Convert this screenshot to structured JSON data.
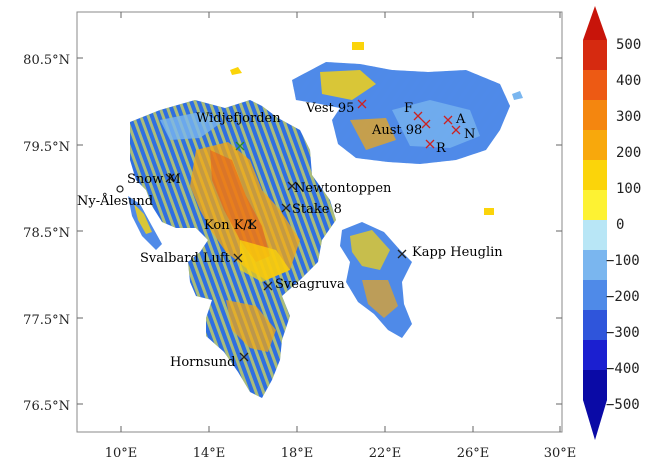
{
  "map": {
    "lon_ticks": [
      "10°E",
      "14°E",
      "18°E",
      "22°E",
      "26°E",
      "30°E"
    ],
    "lat_ticks": [
      "80.5°N",
      "79.5°N",
      "78.5°N",
      "77.5°N",
      "76.5°N"
    ],
    "lon_range": [
      8,
      30.4
    ],
    "lat_range": [
      76.2,
      81.1
    ]
  },
  "colorbar": {
    "labels": [
      "500",
      "400",
      "300",
      "200",
      "100",
      "0",
      "−100",
      "−200",
      "−300",
      "−400",
      "−500"
    ],
    "colors": [
      "#d62a10",
      "#ed5a14",
      "#f4860f",
      "#f8a80c",
      "#fbd40a",
      "#fdf233",
      "#b8e6f6",
      "#7ab6ef",
      "#4f8ae8",
      "#2f55db",
      "#1b1fd0",
      "#0a0aa6"
    ],
    "top_arrow_color": "#c8140a",
    "bottom_arrow_color": "#0a0aa6"
  },
  "stations": [
    {
      "name": "Vest 95",
      "marker": "x",
      "color": "#cc2222"
    },
    {
      "name": "F",
      "marker": "x",
      "color": "#cc2222"
    },
    {
      "name": "A",
      "marker": "x",
      "color": "#cc2222"
    },
    {
      "name": "Aust 98",
      "marker": "x",
      "color": "#cc2222"
    },
    {
      "name": "N",
      "marker": "x",
      "color": "#cc2222"
    },
    {
      "name": "R",
      "marker": "x",
      "color": "#cc2222"
    },
    {
      "name": "Widjefjorden",
      "marker": "x",
      "color": "#2a8a2a"
    },
    {
      "name": "Snow M",
      "marker": "x",
      "color": "#222222"
    },
    {
      "name": "Ny-Ålesund",
      "marker": "o",
      "color": "#222222"
    },
    {
      "name": "Newtontoppen",
      "marker": "x",
      "color": "#222222"
    },
    {
      "name": "Stake 8",
      "marker": "x",
      "color": "#222222"
    },
    {
      "name": "Kon K/L",
      "marker": "x",
      "color": "#222222"
    },
    {
      "name": "Svalbard Luft",
      "marker": "x",
      "color": "#222222"
    },
    {
      "name": "Kapp Heuglin",
      "marker": "x",
      "color": "#222222"
    },
    {
      "name": "Sveagruva",
      "marker": "x",
      "color": "#222222"
    },
    {
      "name": "Hornsund",
      "marker": "x",
      "color": "#222222"
    }
  ]
}
